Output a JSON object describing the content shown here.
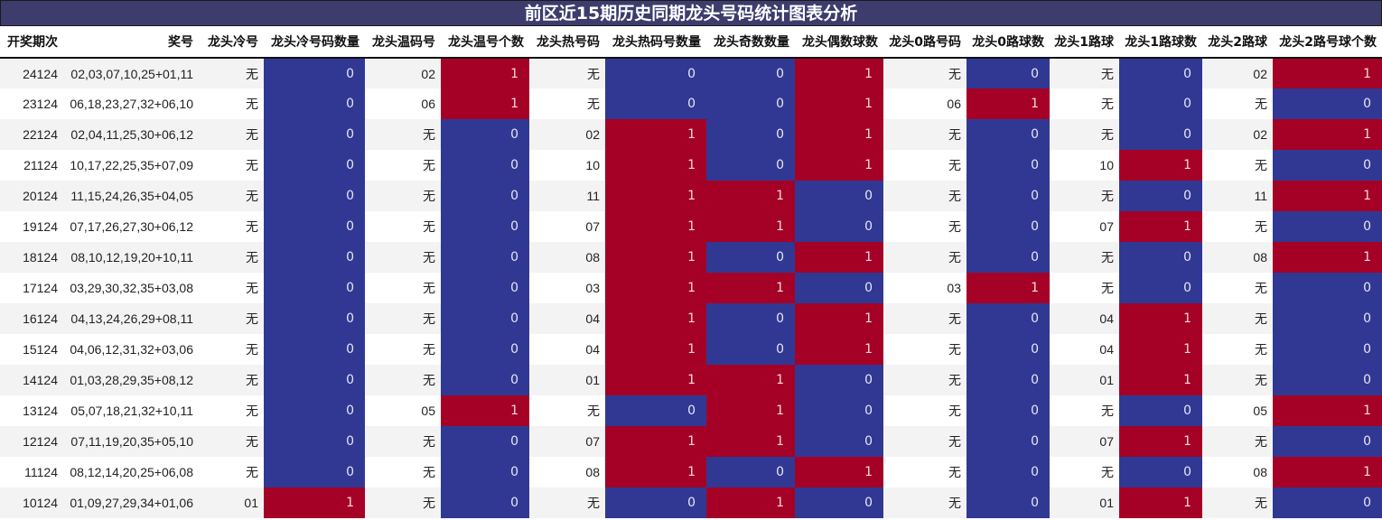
{
  "title": "前区近15期历史同期龙头号码统计图表分析",
  "colors": {
    "zero": "#313894",
    "one": "#a50026",
    "title_bg": "#3c3c6d"
  },
  "columns": [
    "开奖期次",
    "奖号",
    "龙头冷号",
    "龙头冷号码数量",
    "龙头温码号",
    "龙头温号个数",
    "龙头热号码",
    "龙头热码号数量",
    "龙头奇数数量",
    "龙头偶数球数",
    "龙头0路号码",
    "龙头0路球数",
    "龙头1路球",
    "龙头1路球数",
    "龙头2路球",
    "龙头2路号球个数"
  ],
  "rows": [
    [
      "24124",
      "02,03,07,10,25+01,11",
      "无",
      "0",
      "02",
      "1",
      "无",
      "0",
      "0",
      "1",
      "无",
      "0",
      "无",
      "0",
      "02",
      "1"
    ],
    [
      "23124",
      "06,18,23,27,32+06,10",
      "无",
      "0",
      "06",
      "1",
      "无",
      "0",
      "0",
      "1",
      "06",
      "1",
      "无",
      "0",
      "无",
      "0"
    ],
    [
      "22124",
      "02,04,11,25,30+06,12",
      "无",
      "0",
      "无",
      "0",
      "02",
      "1",
      "0",
      "1",
      "无",
      "0",
      "无",
      "0",
      "02",
      "1"
    ],
    [
      "21124",
      "10,17,22,25,35+07,09",
      "无",
      "0",
      "无",
      "0",
      "10",
      "1",
      "0",
      "1",
      "无",
      "0",
      "10",
      "1",
      "无",
      "0"
    ],
    [
      "20124",
      "11,15,24,26,35+04,05",
      "无",
      "0",
      "无",
      "0",
      "11",
      "1",
      "1",
      "0",
      "无",
      "0",
      "无",
      "0",
      "11",
      "1"
    ],
    [
      "19124",
      "07,17,26,27,30+06,12",
      "无",
      "0",
      "无",
      "0",
      "07",
      "1",
      "1",
      "0",
      "无",
      "0",
      "07",
      "1",
      "无",
      "0"
    ],
    [
      "18124",
      "08,10,12,19,20+10,11",
      "无",
      "0",
      "无",
      "0",
      "08",
      "1",
      "0",
      "1",
      "无",
      "0",
      "无",
      "0",
      "08",
      "1"
    ],
    [
      "17124",
      "03,29,30,32,35+03,08",
      "无",
      "0",
      "无",
      "0",
      "03",
      "1",
      "1",
      "0",
      "03",
      "1",
      "无",
      "0",
      "无",
      "0"
    ],
    [
      "16124",
      "04,13,24,26,29+08,11",
      "无",
      "0",
      "无",
      "0",
      "04",
      "1",
      "0",
      "1",
      "无",
      "0",
      "04",
      "1",
      "无",
      "0"
    ],
    [
      "15124",
      "04,06,12,31,32+03,06",
      "无",
      "0",
      "无",
      "0",
      "04",
      "1",
      "0",
      "1",
      "无",
      "0",
      "04",
      "1",
      "无",
      "0"
    ],
    [
      "14124",
      "01,03,28,29,35+08,12",
      "无",
      "0",
      "无",
      "0",
      "01",
      "1",
      "1",
      "0",
      "无",
      "0",
      "01",
      "1",
      "无",
      "0"
    ],
    [
      "13124",
      "05,07,18,21,32+10,11",
      "无",
      "0",
      "05",
      "1",
      "无",
      "0",
      "1",
      "0",
      "无",
      "0",
      "无",
      "0",
      "05",
      "1"
    ],
    [
      "12124",
      "07,11,19,20,35+05,10",
      "无",
      "0",
      "无",
      "0",
      "07",
      "1",
      "1",
      "0",
      "无",
      "0",
      "07",
      "1",
      "无",
      "0"
    ],
    [
      "11124",
      "08,12,14,20,25+06,08",
      "无",
      "0",
      "无",
      "0",
      "08",
      "1",
      "0",
      "1",
      "无",
      "0",
      "无",
      "0",
      "08",
      "1"
    ],
    [
      "10124",
      "01,09,27,29,34+01,06",
      "01",
      "1",
      "无",
      "0",
      "无",
      "0",
      "1",
      "0",
      "无",
      "0",
      "01",
      "1",
      "无",
      "0"
    ]
  ]
}
